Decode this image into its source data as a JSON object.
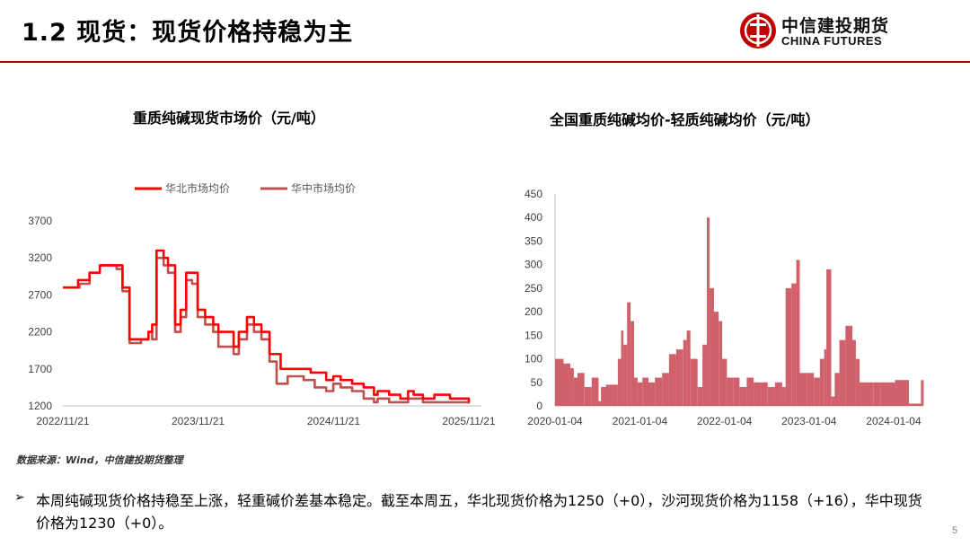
{
  "header": {
    "title": "1.2 现货：现货价格持稳为主",
    "logo_cn": "中信建投期货",
    "logo_en": "CHINA FUTURES",
    "accent_color": "#c00000"
  },
  "chart_data": [
    {
      "type": "line",
      "title": "重质纯碱现货市场价（元/吨）",
      "ylim": [
        1200,
        3700
      ],
      "yticks": [
        "3700",
        "3200",
        "2700",
        "2200",
        "1700",
        "1200"
      ],
      "xticks": [
        "2022/11/21",
        "2023/11/21",
        "2024/11/21",
        "2025/11/21"
      ],
      "legend_position": "top",
      "grid": false,
      "x_start": "2022/11/21",
      "series": [
        {
          "name": "华北市场均价",
          "color": "#ff0000",
          "points": [
            [
              "2022/11/21",
              2800
            ],
            [
              "2022/12/25",
              2800
            ],
            [
              "2023/01/01",
              2900
            ],
            [
              "2023/02/01",
              3000
            ],
            [
              "2023/03/01",
              3100
            ],
            [
              "2023/04/15",
              3100
            ],
            [
              "2023/05/01",
              2800
            ],
            [
              "2023/05/20",
              2100
            ],
            [
              "2023/06/20",
              2100
            ],
            [
              "2023/07/10",
              2200
            ],
            [
              "2023/07/20",
              2300
            ],
            [
              "2023/08/01",
              3300
            ],
            [
              "2023/08/20",
              3200
            ],
            [
              "2023/09/01",
              3100
            ],
            [
              "2023/09/20",
              2300
            ],
            [
              "2023/10/05",
              2500
            ],
            [
              "2023/10/20",
              3000
            ],
            [
              "2023/11/05",
              3000
            ],
            [
              "2023/11/20",
              2500
            ],
            [
              "2023/12/10",
              2400
            ],
            [
              "2024/01/01",
              2300
            ],
            [
              "2024/01/15",
              2200
            ],
            [
              "2024/02/15",
              2200
            ],
            [
              "2024/02/25",
              2000
            ],
            [
              "2024/03/10",
              2200
            ],
            [
              "2024/04/01",
              2400
            ],
            [
              "2024/04/20",
              2300
            ],
            [
              "2024/05/10",
              2200
            ],
            [
              "2024/06/01",
              1900
            ],
            [
              "2024/07/01",
              1700
            ],
            [
              "2024/09/01",
              1700
            ],
            [
              "2024/09/20",
              1650
            ],
            [
              "2024/11/01",
              1550
            ],
            [
              "2024/11/20",
              1600
            ],
            [
              "2024/12/10",
              1550
            ],
            [
              "2025/01/10",
              1500
            ],
            [
              "2025/02/10",
              1450
            ],
            [
              "2025/03/10",
              1350
            ],
            [
              "2025/03/20",
              1400
            ],
            [
              "2025/04/20",
              1350
            ],
            [
              "2025/05/20",
              1300
            ],
            [
              "2025/06/10",
              1400
            ],
            [
              "2025/06/25",
              1350
            ],
            [
              "2025/07/20",
              1300
            ],
            [
              "2025/08/20",
              1350
            ],
            [
              "2025/10/01",
              1300
            ],
            [
              "2025/11/21",
              1250
            ]
          ]
        },
        {
          "name": "华中市场均价",
          "color": "#c0504d",
          "points": [
            [
              "2022/11/21",
              2800
            ],
            [
              "2022/12/25",
              2800
            ],
            [
              "2023/01/05",
              2850
            ],
            [
              "2023/02/01",
              3000
            ],
            [
              "2023/03/01",
              3100
            ],
            [
              "2023/04/15",
              3050
            ],
            [
              "2023/05/01",
              2750
            ],
            [
              "2023/05/20",
              2050
            ],
            [
              "2023/06/20",
              2100
            ],
            [
              "2023/07/10",
              2200
            ],
            [
              "2023/07/20",
              2100
            ],
            [
              "2023/08/01",
              3200
            ],
            [
              "2023/08/20",
              3100
            ],
            [
              "2023/09/01",
              3000
            ],
            [
              "2023/09/20",
              2200
            ],
            [
              "2023/10/05",
              2400
            ],
            [
              "2023/10/20",
              2900
            ],
            [
              "2023/11/05",
              2850
            ],
            [
              "2023/11/20",
              2400
            ],
            [
              "2023/12/10",
              2300
            ],
            [
              "2024/01/01",
              2200
            ],
            [
              "2024/01/15",
              2000
            ],
            [
              "2024/02/15",
              2000
            ],
            [
              "2024/02/25",
              1900
            ],
            [
              "2024/03/10",
              2100
            ],
            [
              "2024/04/01",
              2300
            ],
            [
              "2024/04/20",
              2200
            ],
            [
              "2024/05/10",
              2100
            ],
            [
              "2024/06/01",
              1800
            ],
            [
              "2024/06/20",
              1500
            ],
            [
              "2024/07/20",
              1600
            ],
            [
              "2024/09/01",
              1550
            ],
            [
              "2024/10/01",
              1450
            ],
            [
              "2024/11/01",
              1400
            ],
            [
              "2024/11/20",
              1500
            ],
            [
              "2024/12/10",
              1450
            ],
            [
              "2025/01/10",
              1400
            ],
            [
              "2025/02/10",
              1300
            ],
            [
              "2025/03/10",
              1250
            ],
            [
              "2025/03/20",
              1300
            ],
            [
              "2025/04/20",
              1250
            ],
            [
              "2025/06/10",
              1300
            ],
            [
              "2025/07/20",
              1250
            ],
            [
              "2025/11/21",
              1230
            ]
          ]
        }
      ]
    },
    {
      "type": "bar",
      "title": "全国重质纯碱均价-轻质纯碱均价（元/吨）",
      "ylim": [
        0,
        450
      ],
      "yticks": [
        "450",
        "400",
        "350",
        "300",
        "250",
        "200",
        "150",
        "100",
        "50",
        "0"
      ],
      "xticks": [
        "2020-01-04",
        "2021-01-04",
        "2022-01-04",
        "2023-01-04",
        "2024-01-04"
      ],
      "grid": false,
      "color": "#d0606a",
      "x_start": "2020-01-04",
      "series": [
        {
          "points": [
            [
              "2020-01-04",
              100
            ],
            [
              "2020-02-10",
              90
            ],
            [
              "2020-03-10",
              80
            ],
            [
              "2020-03-25",
              60
            ],
            [
              "2020-04-10",
              70
            ],
            [
              "2020-05-10",
              40
            ],
            [
              "2020-06-10",
              60
            ],
            [
              "2020-07-10",
              10
            ],
            [
              "2020-07-20",
              40
            ],
            [
              "2020-08-10",
              45
            ],
            [
              "2020-09-10",
              45
            ],
            [
              "2020-10-01",
              100
            ],
            [
              "2020-10-15",
              160
            ],
            [
              "2020-10-25",
              130
            ],
            [
              "2020-11-10",
              220
            ],
            [
              "2020-11-25",
              180
            ],
            [
              "2020-12-10",
              60
            ],
            [
              "2020-12-25",
              50
            ],
            [
              "2021-01-15",
              60
            ],
            [
              "2021-02-10",
              50
            ],
            [
              "2021-03-10",
              60
            ],
            [
              "2021-04-10",
              70
            ],
            [
              "2021-05-10",
              110
            ],
            [
              "2021-06-10",
              120
            ],
            [
              "2021-07-10",
              140
            ],
            [
              "2021-07-25",
              160
            ],
            [
              "2021-08-10",
              100
            ],
            [
              "2021-09-10",
              40
            ],
            [
              "2021-10-01",
              130
            ],
            [
              "2021-10-20",
              400
            ],
            [
              "2021-11-01",
              250
            ],
            [
              "2021-11-20",
              200
            ],
            [
              "2021-12-10",
              180
            ],
            [
              "2021-12-25",
              100
            ],
            [
              "2022-01-15",
              60
            ],
            [
              "2022-02-10",
              60
            ],
            [
              "2022-03-10",
              40
            ],
            [
              "2022-04-10",
              60
            ],
            [
              "2022-05-10",
              50
            ],
            [
              "2022-06-10",
              50
            ],
            [
              "2022-07-10",
              40
            ],
            [
              "2022-08-10",
              50
            ],
            [
              "2022-09-10",
              40
            ],
            [
              "2022-09-25",
              250
            ],
            [
              "2022-10-20",
              260
            ],
            [
              "2022-11-10",
              310
            ],
            [
              "2022-11-25",
              70
            ],
            [
              "2022-12-25",
              70
            ],
            [
              "2023-01-25",
              60
            ],
            [
              "2023-02-20",
              100
            ],
            [
              "2023-03-10",
              120
            ],
            [
              "2023-03-20",
              290
            ],
            [
              "2023-04-10",
              20
            ],
            [
              "2023-04-25",
              70
            ],
            [
              "2023-05-15",
              140
            ],
            [
              "2023-06-10",
              170
            ],
            [
              "2023-07-10",
              140
            ],
            [
              "2023-07-25",
              100
            ],
            [
              "2023-08-10",
              50
            ],
            [
              "2023-09-10",
              50
            ],
            [
              "2023-10-10",
              50
            ],
            [
              "2023-11-10",
              50
            ],
            [
              "2023-12-10",
              50
            ],
            [
              "2024-01-10",
              55
            ],
            [
              "2024-02-10",
              55
            ],
            [
              "2024-03-10",
              5
            ],
            [
              "2024-04-10",
              5
            ],
            [
              "2024-05-01",
              55
            ]
          ]
        }
      ]
    }
  ],
  "source": "数据来源：Wind，中信建投期货整理",
  "summary": {
    "bullet": "➢",
    "text": "本周纯碱现货价格持稳至上涨，轻重碱价差基本稳定。截至本周五，华北现货价格为1250（+0），沙河现货价格为1158（+16），华中现货价格为1230（+0）。"
  },
  "page_number": "5"
}
